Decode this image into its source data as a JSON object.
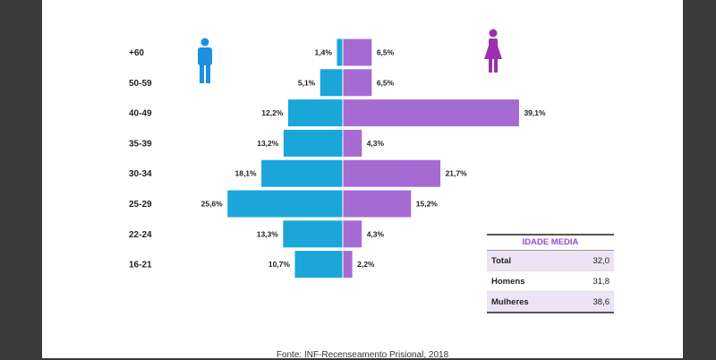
{
  "chart_data": {
    "type": "bar",
    "orientation": "horizontal-pyramid",
    "categories": [
      "+60",
      "50-59",
      "40-49",
      "35-39",
      "30-34",
      "25-29",
      "22-24",
      "16-21"
    ],
    "series": [
      {
        "values": [
          1.4,
          5.1,
          12.2,
          13.2,
          18.1,
          25.6,
          13.3,
          10.7
        ],
        "labels": [
          "1,4%",
          "5,1%",
          "12,2%",
          "13,2%",
          "18,1%",
          "25,6%",
          "13,3%",
          "10,7%"
        ],
        "color": "#1aa6d9",
        "side": "left",
        "icon": "male-icon"
      },
      {
        "values": [
          6.5,
          6.5,
          39.1,
          4.3,
          21.7,
          15.2,
          4.3,
          2.2
        ],
        "labels": [
          "6,5%",
          "6,5%",
          "39,1%",
          "4,3%",
          "21,7%",
          "15,2%",
          "4,3%",
          "2,2%"
        ],
        "color": "#a66bd3",
        "side": "right",
        "icon": "female-icon"
      }
    ]
  },
  "summary": {
    "title": "IDADE MEDIA",
    "rows": [
      {
        "label": "Total",
        "value": "32,0"
      },
      {
        "label": "Homens",
        "value": "31,8"
      },
      {
        "label": "Mulheres",
        "value": "38,6"
      }
    ]
  },
  "source": "Fonte: INF-Recenseamento Prisional, 2018",
  "colors": {
    "male": "#1aa6d9",
    "female": "#a66bd3",
    "male_icon": "#1e90e0",
    "female_icon": "#9b2fae"
  }
}
